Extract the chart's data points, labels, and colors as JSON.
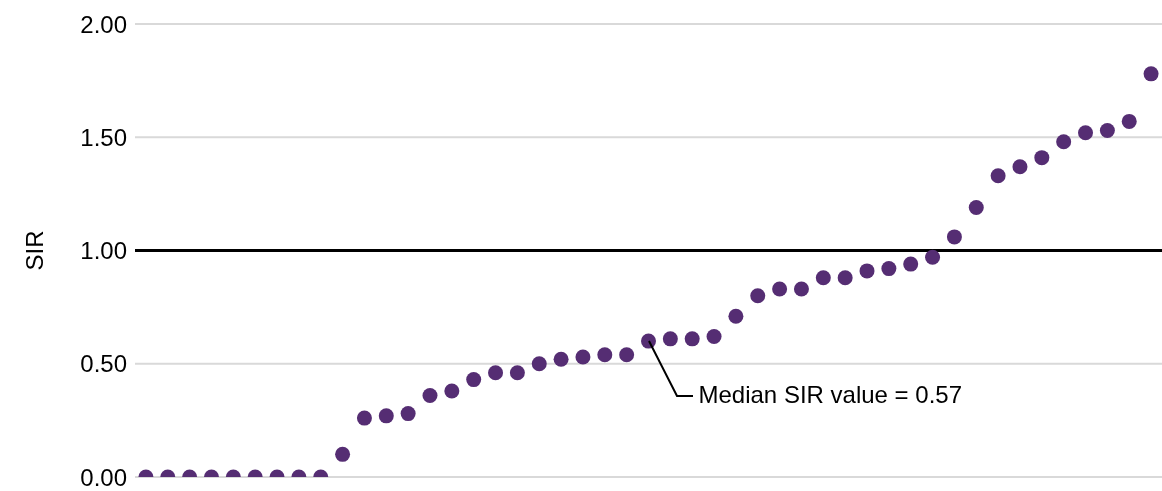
{
  "chart_data": {
    "type": "scatter",
    "ylabel": "SIR",
    "categories": [
      null,
      null,
      null,
      null,
      null,
      null,
      null,
      null,
      null,
      null,
      null,
      null,
      null,
      null,
      null,
      null,
      null,
      null,
      null,
      null,
      null,
      null,
      null,
      null,
      null,
      null,
      null,
      null,
      null,
      null,
      null,
      null,
      null,
      null,
      null,
      null,
      null,
      null,
      null,
      null,
      null,
      null,
      null,
      null,
      null,
      null,
      null
    ],
    "series": [
      {
        "color": "#552d73",
        "values": [
          0,
          0,
          0,
          0,
          0,
          0,
          0,
          0,
          0,
          0.1,
          0.26,
          0.27,
          0.28,
          0.36,
          0.38,
          0.43,
          0.46,
          0.46,
          0.5,
          0.52,
          0.53,
          0.54,
          0.54,
          0.6,
          0.61,
          0.61,
          0.62,
          0.71,
          0.8,
          0.83,
          0.83,
          0.88,
          0.88,
          0.91,
          0.92,
          0.94,
          0.97,
          1.06,
          1.19,
          1.33,
          1.37,
          1.41,
          1.48,
          1.52,
          1.53,
          1.57,
          1.78
        ]
      }
    ],
    "ylim": [
      0,
      2
    ],
    "yticks": [
      {
        "value": 0,
        "label": "0.00"
      },
      {
        "value": 0.5,
        "label": "0.50"
      },
      {
        "value": 1,
        "label": "1.00"
      },
      {
        "value": 1.5,
        "label": "1.50"
      },
      {
        "value": 2,
        "label": "2.00"
      }
    ],
    "grid": "y",
    "marker": "circle",
    "legend": false,
    "ref_lines": [
      {
        "axis": "y",
        "value": 1,
        "color": "#000000"
      }
    ],
    "annotations": [
      "Median SIR value = 0.57"
    ]
  }
}
